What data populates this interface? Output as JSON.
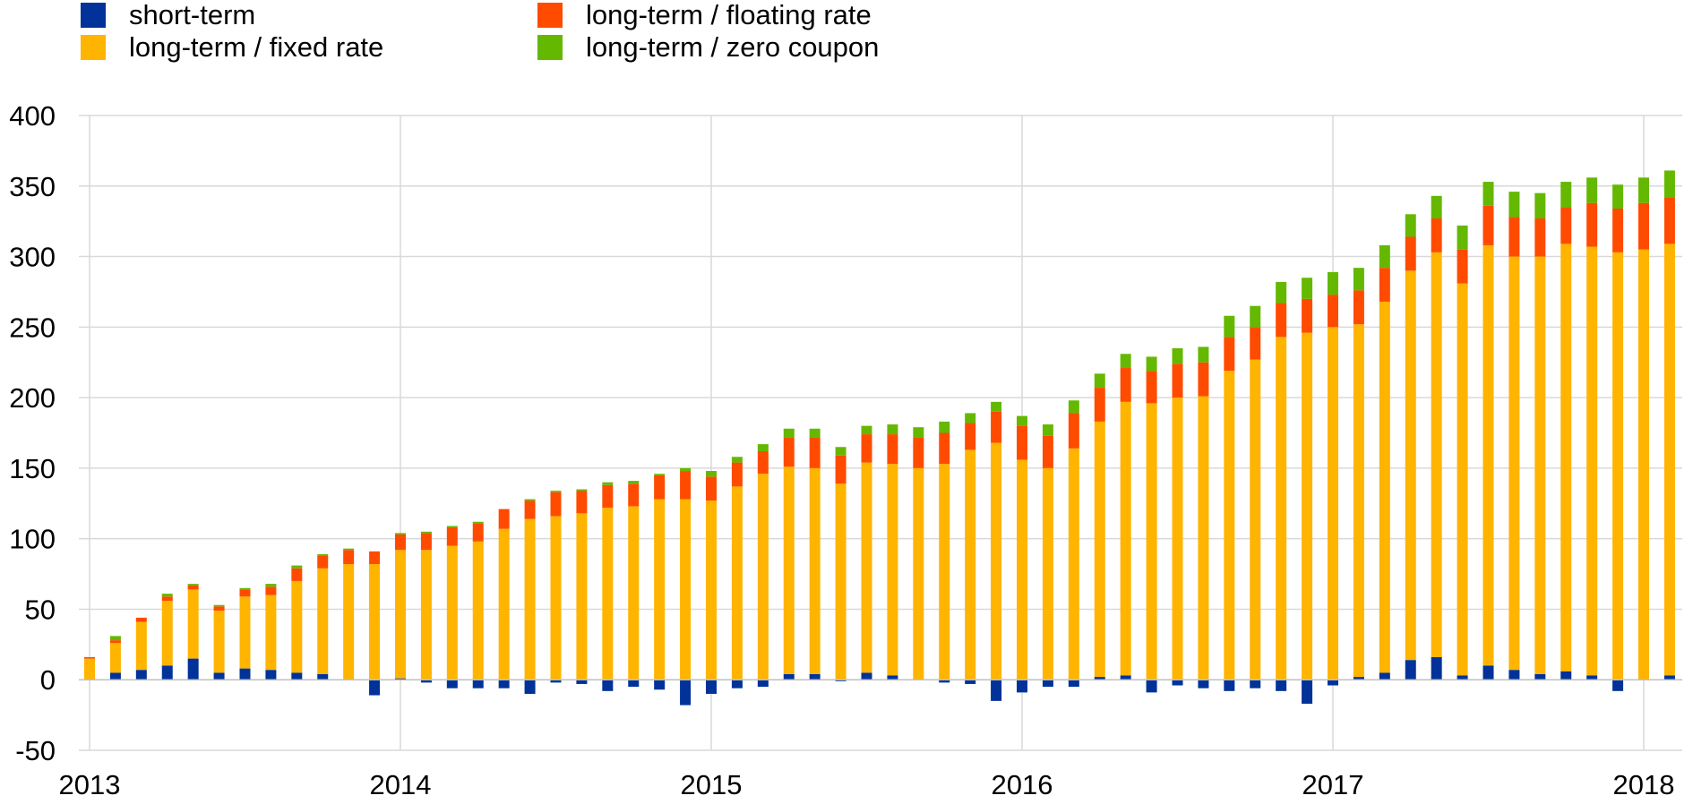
{
  "chart_data": {
    "type": "bar",
    "stacked": true,
    "title": "",
    "xlabel": "",
    "ylabel": "",
    "ylim": [
      -50,
      400
    ],
    "yticks": [
      -50,
      0,
      50,
      100,
      150,
      200,
      250,
      300,
      350,
      400
    ],
    "xticks": [
      "2013",
      "2014",
      "2015",
      "2016",
      "2017",
      "2018"
    ],
    "grid": true,
    "legend_position": "top-left",
    "categories": [
      "2013-01",
      "2013-02",
      "2013-03",
      "2013-04",
      "2013-05",
      "2013-06",
      "2013-07",
      "2013-08",
      "2013-09",
      "2013-10",
      "2013-11",
      "2013-12",
      "2014-01",
      "2014-02",
      "2014-03",
      "2014-04",
      "2014-05",
      "2014-06",
      "2014-07",
      "2014-08",
      "2014-09",
      "2014-10",
      "2014-11",
      "2014-12",
      "2015-01",
      "2015-02",
      "2015-03",
      "2015-04",
      "2015-05",
      "2015-06",
      "2015-07",
      "2015-08",
      "2015-09",
      "2015-10",
      "2015-11",
      "2015-12",
      "2016-01",
      "2016-02",
      "2016-03",
      "2016-04",
      "2016-05",
      "2016-06",
      "2016-07",
      "2016-08",
      "2016-09",
      "2016-10",
      "2016-11",
      "2016-12",
      "2017-01",
      "2017-02",
      "2017-03",
      "2017-04",
      "2017-05",
      "2017-06",
      "2017-07",
      "2017-08",
      "2017-09",
      "2017-10",
      "2017-11",
      "2017-12",
      "2018-01",
      "2018-02"
    ],
    "series": [
      {
        "name": "short-term",
        "color": "#003299",
        "values": [
          0,
          5,
          7,
          10,
          15,
          5,
          8,
          7,
          5,
          4,
          0,
          -11,
          1,
          -2,
          -6,
          -6,
          -6,
          -10,
          -2,
          -3,
          -8,
          -5,
          -7,
          -18,
          -10,
          -6,
          -5,
          4,
          4,
          -1,
          5,
          3,
          0,
          -2,
          -3,
          -15,
          -9,
          -5,
          -5,
          2,
          3,
          -9,
          -4,
          -6,
          -8,
          -6,
          -8,
          -17,
          -4,
          2,
          5,
          14,
          16,
          3,
          10,
          7,
          4,
          6,
          3,
          -8,
          0,
          3
        ]
      },
      {
        "name": "long-term / fixed rate",
        "color": "#FFB400",
        "values": [
          15,
          21,
          34,
          46,
          49,
          44,
          51,
          53,
          65,
          75,
          82,
          82,
          91,
          92,
          95,
          98,
          107,
          114,
          116,
          118,
          122,
          123,
          128,
          128,
          127,
          137,
          146,
          147,
          146,
          139,
          149,
          150,
          150,
          153,
          163,
          168,
          156,
          150,
          164,
          181,
          194,
          196,
          200,
          201,
          219,
          227,
          243,
          246,
          250,
          250,
          263,
          276,
          287,
          278,
          298,
          293,
          296,
          303,
          304,
          303,
          305,
          306
        ]
      },
      {
        "name": "long-term / floating rate",
        "color": "#FF4B00",
        "values": [
          1,
          2,
          3,
          3,
          3,
          3,
          5,
          6,
          9,
          9,
          10,
          9,
          11,
          12,
          13,
          13,
          14,
          13,
          17,
          16,
          16,
          16,
          17,
          20,
          17,
          17,
          16,
          21,
          22,
          20,
          20,
          21,
          22,
          22,
          19,
          22,
          24,
          23,
          25,
          24,
          24,
          23,
          24,
          24,
          24,
          23,
          24,
          24,
          23,
          24,
          24,
          24,
          24,
          24,
          28,
          28,
          27,
          26,
          31,
          31,
          33,
          33
        ]
      },
      {
        "name": "long-term / zero coupon",
        "color": "#65B800",
        "values": [
          0,
          3,
          0,
          2,
          1,
          1,
          1,
          2,
          2,
          1,
          1,
          0,
          1,
          1,
          1,
          1,
          0,
          1,
          1,
          1,
          2,
          2,
          1,
          2,
          4,
          4,
          5,
          6,
          6,
          6,
          6,
          7,
          7,
          8,
          7,
          7,
          7,
          8,
          9,
          10,
          10,
          10,
          11,
          11,
          15,
          15,
          15,
          15,
          16,
          16,
          16,
          16,
          16,
          17,
          17,
          18,
          18,
          18,
          18,
          17,
          18,
          19
        ]
      }
    ]
  }
}
